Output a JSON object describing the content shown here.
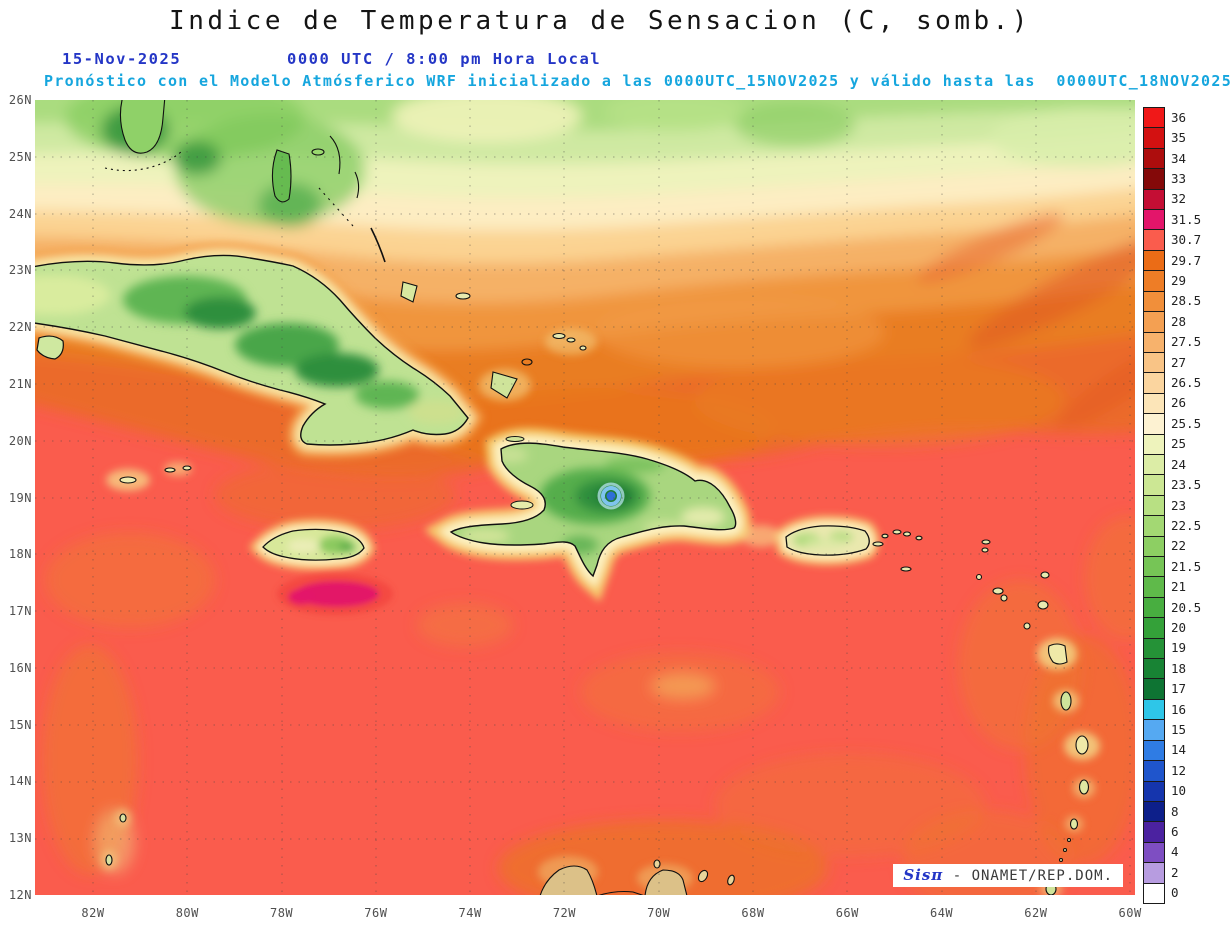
{
  "header": {
    "title": "Indice de Temperatura de Sensacion (C, somb.)",
    "date": "15-Nov-2025",
    "time": "0000 UTC / 8:00 pm Hora Local",
    "forecast": "Pronóstico con el Modelo Atmósferico WRF inicializado a las 0000UTC_15NOV2025 y válido hasta las  0000UTC_18NOV2025"
  },
  "map": {
    "lat_labels": [
      "26N",
      "25N",
      "24N",
      "23N",
      "22N",
      "21N",
      "20N",
      "19N",
      "18N",
      "17N",
      "16N",
      "15N",
      "14N",
      "13N",
      "12N"
    ],
    "lon_labels": [
      "82W",
      "80W",
      "78W",
      "76W",
      "74W",
      "72W",
      "70W",
      "68W",
      "66W",
      "64W",
      "62W",
      "60W"
    ]
  },
  "colorbar": {
    "entries": [
      {
        "value": "36",
        "color": "#f01818"
      },
      {
        "value": "35",
        "color": "#d31111"
      },
      {
        "value": "34",
        "color": "#ad0d0d"
      },
      {
        "value": "33",
        "color": "#840909"
      },
      {
        "value": "32",
        "color": "#c40e34"
      },
      {
        "value": "31.5",
        "color": "#e3156a"
      },
      {
        "value": "30.7",
        "color": "#fa5c4d"
      },
      {
        "value": "29.7",
        "color": "#eb6c16"
      },
      {
        "value": "29",
        "color": "#ee7d26"
      },
      {
        "value": "28.5",
        "color": "#f18f3a"
      },
      {
        "value": "28",
        "color": "#f4a052"
      },
      {
        "value": "27.5",
        "color": "#f7b26c"
      },
      {
        "value": "27",
        "color": "#f9c486"
      },
      {
        "value": "26.5",
        "color": "#fbd59f"
      },
      {
        "value": "26",
        "color": "#fce5b8"
      },
      {
        "value": "25.5",
        "color": "#fdf2d2"
      },
      {
        "value": "25",
        "color": "#eef3bc"
      },
      {
        "value": "24",
        "color": "#dceda6"
      },
      {
        "value": "23.5",
        "color": "#cce794"
      },
      {
        "value": "23",
        "color": "#b8e083"
      },
      {
        "value": "22.5",
        "color": "#a3d873"
      },
      {
        "value": "22",
        "color": "#8dcf63"
      },
      {
        "value": "21.5",
        "color": "#76c556"
      },
      {
        "value": "21",
        "color": "#5fba4a"
      },
      {
        "value": "20.5",
        "color": "#48ae40"
      },
      {
        "value": "20",
        "color": "#34a139"
      },
      {
        "value": "19",
        "color": "#259237"
      },
      {
        "value": "18",
        "color": "#188334"
      },
      {
        "value": "17",
        "color": "#0e7433"
      },
      {
        "value": "16",
        "color": "#2ec6e8"
      },
      {
        "value": "15",
        "color": "#55a9f2"
      },
      {
        "value": "14",
        "color": "#2f7ce4"
      },
      {
        "value": "12",
        "color": "#1f55cc"
      },
      {
        "value": "10",
        "color": "#1535ad"
      },
      {
        "value": "8",
        "color": "#0d1f8a"
      },
      {
        "value": "6",
        "color": "#4b22a0"
      },
      {
        "value": "4",
        "color": "#7e4ec2"
      },
      {
        "value": "2",
        "color": "#b79ce0"
      },
      {
        "value": "0",
        "color": "#ffffff"
      }
    ]
  },
  "attribution": {
    "brand": "Sisπ",
    "text": " - ONAMET/REP.DOM."
  }
}
